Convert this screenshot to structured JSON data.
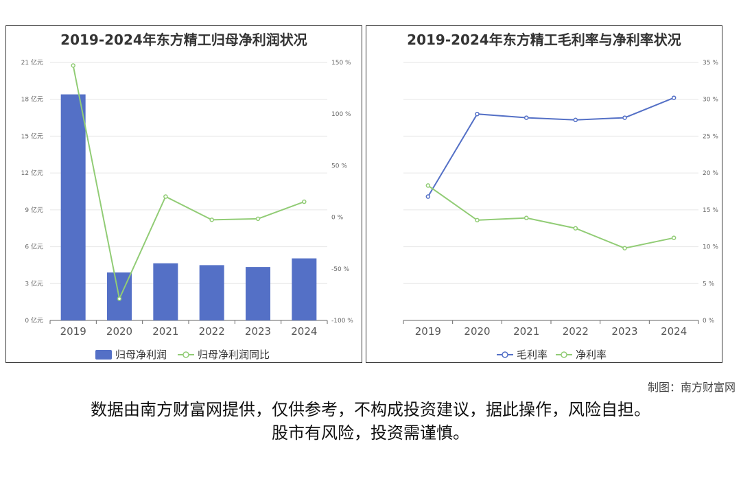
{
  "left_chart": {
    "title": "2019-2024年东方精工归母净利润状况",
    "legend": [
      "归母净利润",
      "归母净利润同比"
    ],
    "x_tick_labels": [
      "2019",
      "2020",
      "2021",
      "2022",
      "2023",
      "2024"
    ],
    "y_left_tick_labels": [
      "0 亿元",
      "3 亿元",
      "6 亿元",
      "9 亿元",
      "12 亿元",
      "15 亿元",
      "18 亿元",
      "21 亿元"
    ],
    "y_right_tick_labels": [
      "-100 %",
      "-50 %",
      "0 %",
      "50 %",
      "100 %",
      "150 %"
    ]
  },
  "right_chart": {
    "title": "2019-2024年东方精工毛利率与净利率状况",
    "legend": [
      "毛利率",
      "净利率"
    ],
    "x_tick_labels": [
      "2019",
      "2020",
      "2021",
      "2022",
      "2023",
      "2024"
    ],
    "y_right_tick_labels": [
      "0 %",
      "5 %",
      "10 %",
      "15 %",
      "20 %",
      "25 %",
      "30 %",
      "35 %"
    ]
  },
  "colors": {
    "bar": "#5470c6",
    "green_line": "#91cc75",
    "blue_line": "#5470c6"
  },
  "chart_data": [
    {
      "type": "bar",
      "title": "2019-2024年东方精工归母净利润状况",
      "categories": [
        "2019",
        "2020",
        "2021",
        "2022",
        "2023",
        "2024"
      ],
      "series": [
        {
          "name": "归母净利润",
          "type": "bar",
          "axis": "left",
          "values": [
            18.4,
            3.9,
            4.65,
            4.5,
            4.35,
            5.05
          ]
        },
        {
          "name": "归母净利润同比",
          "type": "line",
          "axis": "right",
          "values": [
            147,
            -79,
            20,
            -2.5,
            -1.5,
            15
          ]
        }
      ],
      "y_left_range": [
        0,
        21
      ],
      "y_right_range": [
        -100,
        150
      ],
      "legend_position": "bottom",
      "grid": true
    },
    {
      "type": "line",
      "title": "2019-2024年东方精工毛利率与净利率状况",
      "categories": [
        "2019",
        "2020",
        "2021",
        "2022",
        "2023",
        "2024"
      ],
      "series": [
        {
          "name": "毛利率",
          "values": [
            16.8,
            28.0,
            27.5,
            27.2,
            27.5,
            30.2
          ]
        },
        {
          "name": "净利率",
          "values": [
            18.3,
            13.6,
            13.9,
            12.5,
            9.8,
            11.2
          ]
        }
      ],
      "y_right_range": [
        0,
        35
      ],
      "legend_position": "bottom",
      "grid": true
    }
  ],
  "footer": {
    "credit": "制图：南方财富网",
    "disclaimer_line1": "数据由南方财富网提供，仅供参考，不构成投资建议，据此操作，风险自担。",
    "disclaimer_line2": "股市有风险，投资需谨慎。"
  }
}
